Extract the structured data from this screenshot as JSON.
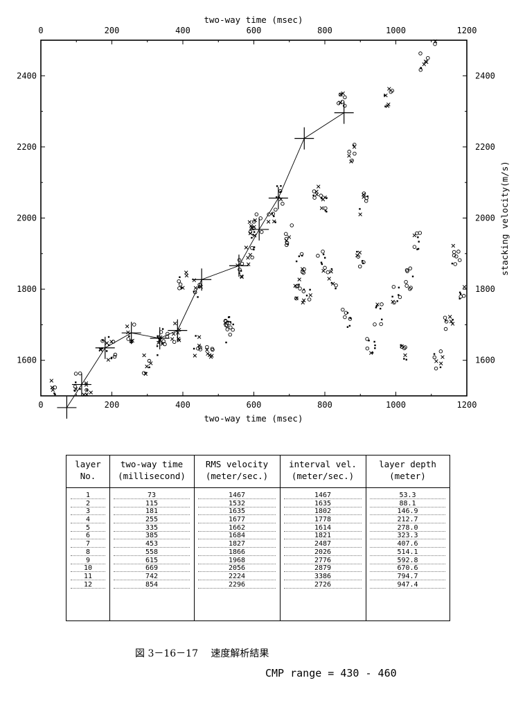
{
  "chart_data": {
    "type": "scatter",
    "xlabel": "two-way time (msec)",
    "ylabel": "stacking velocity(m/s)",
    "xlim": [
      0,
      1200
    ],
    "ylim": [
      1500,
      2500
    ],
    "x_ticks": [
      0,
      200,
      400,
      600,
      800,
      1000,
      1200
    ],
    "y_ticks": [
      1600,
      1800,
      2000,
      2200,
      2400
    ],
    "picks_line": {
      "x": [
        73,
        115,
        181,
        255,
        335,
        385,
        453,
        558,
        615,
        669,
        742,
        854
      ],
      "y": [
        1467,
        1532,
        1635,
        1677,
        1662,
        1684,
        1827,
        1866,
        1968,
        2056,
        2224,
        2296
      ]
    },
    "scatter_clusters": [
      {
        "x": 40,
        "y": 1520
      },
      {
        "x": 100,
        "y": 1535
      },
      {
        "x": 130,
        "y": 1520
      },
      {
        "x": 180,
        "y": 1640
      },
      {
        "x": 200,
        "y": 1630
      },
      {
        "x": 255,
        "y": 1680
      },
      {
        "x": 300,
        "y": 1590
      },
      {
        "x": 330,
        "y": 1640
      },
      {
        "x": 345,
        "y": 1665
      },
      {
        "x": 380,
        "y": 1680
      },
      {
        "x": 400,
        "y": 1820
      },
      {
        "x": 440,
        "y": 1800
      },
      {
        "x": 440,
        "y": 1640
      },
      {
        "x": 480,
        "y": 1630
      },
      {
        "x": 530,
        "y": 1680
      },
      {
        "x": 530,
        "y": 1720
      },
      {
        "x": 560,
        "y": 1860
      },
      {
        "x": 590,
        "y": 1900
      },
      {
        "x": 600,
        "y": 1960
      },
      {
        "x": 610,
        "y": 1990
      },
      {
        "x": 650,
        "y": 2000
      },
      {
        "x": 670,
        "y": 2070
      },
      {
        "x": 700,
        "y": 1950
      },
      {
        "x": 720,
        "y": 1800
      },
      {
        "x": 730,
        "y": 1870
      },
      {
        "x": 750,
        "y": 1780
      },
      {
        "x": 780,
        "y": 2080
      },
      {
        "x": 790,
        "y": 1880
      },
      {
        "x": 800,
        "y": 2040
      },
      {
        "x": 820,
        "y": 1830
      },
      {
        "x": 850,
        "y": 2340
      },
      {
        "x": 860,
        "y": 1720
      },
      {
        "x": 880,
        "y": 2180
      },
      {
        "x": 900,
        "y": 1880
      },
      {
        "x": 910,
        "y": 2040
      },
      {
        "x": 930,
        "y": 1650
      },
      {
        "x": 950,
        "y": 1730
      },
      {
        "x": 980,
        "y": 2340
      },
      {
        "x": 1000,
        "y": 1780
      },
      {
        "x": 1020,
        "y": 1620
      },
      {
        "x": 1040,
        "y": 1830
      },
      {
        "x": 1060,
        "y": 1930
      },
      {
        "x": 1080,
        "y": 2440
      },
      {
        "x": 1100,
        "y": 2490
      },
      {
        "x": 1120,
        "y": 1600
      },
      {
        "x": 1150,
        "y": 1700
      },
      {
        "x": 1170,
        "y": 1900
      },
      {
        "x": 1190,
        "y": 1800
      }
    ]
  },
  "table": {
    "headers": [
      [
        "layer",
        "No."
      ],
      [
        "two-way time",
        "(millisecond)"
      ],
      [
        "RMS velocity",
        "(meter/sec.)"
      ],
      [
        "interval vel.",
        "(meter/sec.)"
      ],
      [
        "layer depth",
        "(meter)"
      ]
    ],
    "rows": [
      {
        "layer": "1",
        "time": "73",
        "rms": "1467",
        "interval": "1467",
        "depth": "53.3"
      },
      {
        "layer": "2",
        "time": "115",
        "rms": "1532",
        "interval": "1635",
        "depth": "88.1"
      },
      {
        "layer": "3",
        "time": "181",
        "rms": "1635",
        "interval": "1802",
        "depth": "146.9"
      },
      {
        "layer": "4",
        "time": "255",
        "rms": "1677",
        "interval": "1778",
        "depth": "212.7"
      },
      {
        "layer": "5",
        "time": "335",
        "rms": "1662",
        "interval": "1614",
        "depth": "278.0"
      },
      {
        "layer": "6",
        "time": "385",
        "rms": "1684",
        "interval": "1821",
        "depth": "323.3"
      },
      {
        "layer": "7",
        "time": "453",
        "rms": "1827",
        "interval": "2487",
        "depth": "407.6"
      },
      {
        "layer": "8",
        "time": "558",
        "rms": "1866",
        "interval": "2026",
        "depth": "514.1"
      },
      {
        "layer": "9",
        "time": "615",
        "rms": "1968",
        "interval": "2776",
        "depth": "592.8"
      },
      {
        "layer": "10",
        "time": "669",
        "rms": "2056",
        "interval": "2879",
        "depth": "670.6"
      },
      {
        "layer": "11",
        "time": "742",
        "rms": "2224",
        "interval": "3386",
        "depth": "794.7"
      },
      {
        "layer": "12",
        "time": "854",
        "rms": "2296",
        "interval": "2726",
        "depth": "947.4"
      }
    ]
  },
  "caption": "図 3－16－17　 速度解析結果",
  "cmp_range": "CMP range = 430 - 460"
}
